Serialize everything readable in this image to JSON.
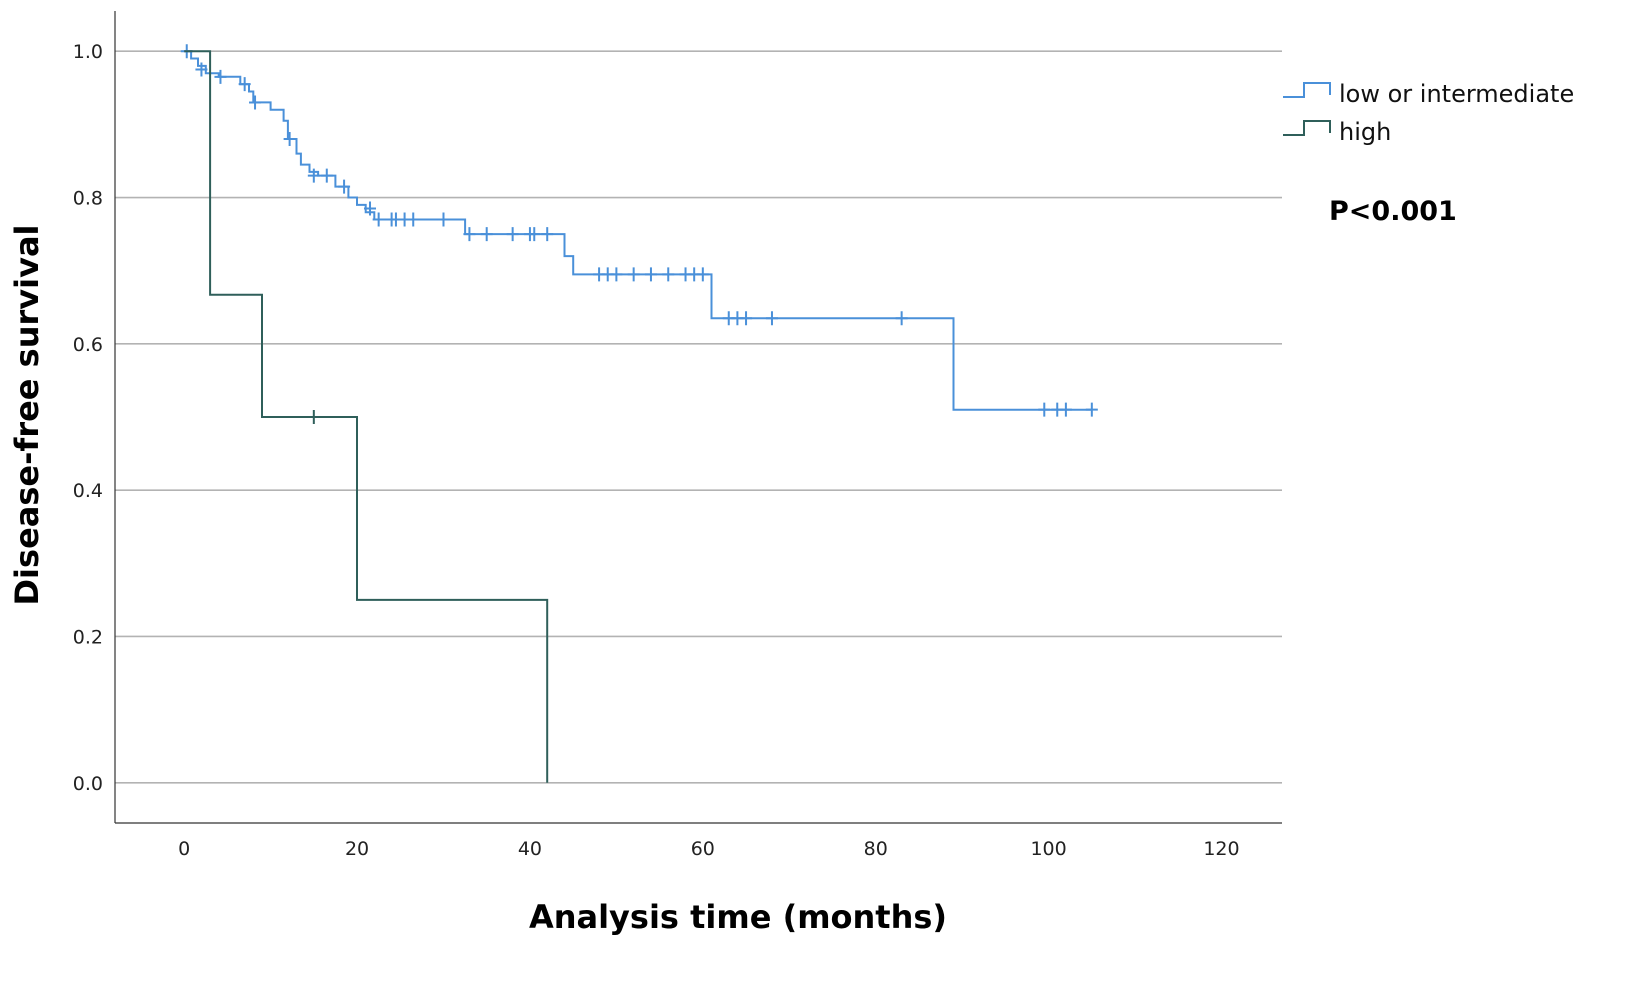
{
  "chart_data": {
    "type": "line",
    "subtype": "kaplan-meier",
    "title": "",
    "xlabel": "Analysis time (months)",
    "ylabel": "Disease-free survival",
    "xlim": [
      -8,
      127
    ],
    "ylim": [
      -0.055,
      1.055
    ],
    "x_ticks": [
      0,
      20,
      40,
      60,
      80,
      100,
      120
    ],
    "x_tick_labels": [
      "0",
      "20",
      "40",
      "60",
      "80",
      "100",
      "120"
    ],
    "y_ticks": [
      0.0,
      0.2,
      0.4,
      0.6,
      0.8,
      1.0
    ],
    "y_tick_labels": [
      "0.0",
      "0.2",
      "0.4",
      "0.6",
      "0.8",
      "1.0"
    ],
    "grid": "horizontal",
    "legend_position": "right",
    "annotation": "P<0.001",
    "series": [
      {
        "name": "low or intermediate",
        "color": "#4a90d9",
        "steps": [
          [
            0,
            1.0
          ],
          [
            0.8,
            0.99
          ],
          [
            1.6,
            0.98
          ],
          [
            2.5,
            0.97
          ],
          [
            4.0,
            0.965
          ],
          [
            6.5,
            0.955
          ],
          [
            7.5,
            0.945
          ],
          [
            8.0,
            0.93
          ],
          [
            10.0,
            0.92
          ],
          [
            11.5,
            0.905
          ],
          [
            12.0,
            0.88
          ],
          [
            13.0,
            0.86
          ],
          [
            13.5,
            0.845
          ],
          [
            14.5,
            0.835
          ],
          [
            15.5,
            0.83
          ],
          [
            17.5,
            0.815
          ],
          [
            19.0,
            0.8
          ],
          [
            20.0,
            0.79
          ],
          [
            21.0,
            0.78
          ],
          [
            22.0,
            0.77
          ],
          [
            32.5,
            0.75
          ],
          [
            44.0,
            0.72
          ],
          [
            45.0,
            0.695
          ],
          [
            61.0,
            0.635
          ],
          [
            89.0,
            0.51
          ],
          [
            105.0,
            0.51
          ]
        ],
        "censored": [
          [
            0.3,
            1.0
          ],
          [
            2.0,
            0.975
          ],
          [
            4.2,
            0.965
          ],
          [
            7.0,
            0.955
          ],
          [
            8.2,
            0.93
          ],
          [
            12.2,
            0.88
          ],
          [
            15.0,
            0.83
          ],
          [
            16.5,
            0.83
          ],
          [
            18.5,
            0.815
          ],
          [
            21.5,
            0.785
          ],
          [
            22.5,
            0.77
          ],
          [
            24.0,
            0.77
          ],
          [
            24.5,
            0.77
          ],
          [
            25.5,
            0.77
          ],
          [
            26.5,
            0.77
          ],
          [
            30.0,
            0.77
          ],
          [
            33.0,
            0.75
          ],
          [
            35.0,
            0.75
          ],
          [
            38.0,
            0.75
          ],
          [
            40.0,
            0.75
          ],
          [
            40.5,
            0.75
          ],
          [
            42.0,
            0.75
          ],
          [
            48.0,
            0.695
          ],
          [
            49.0,
            0.695
          ],
          [
            50.0,
            0.695
          ],
          [
            52.0,
            0.695
          ],
          [
            54.0,
            0.695
          ],
          [
            56.0,
            0.695
          ],
          [
            58.0,
            0.695
          ],
          [
            59.0,
            0.695
          ],
          [
            60.0,
            0.695
          ],
          [
            63.0,
            0.635
          ],
          [
            64.0,
            0.635
          ],
          [
            65.0,
            0.635
          ],
          [
            68.0,
            0.635
          ],
          [
            83.0,
            0.635
          ],
          [
            99.5,
            0.51
          ],
          [
            101.0,
            0.51
          ],
          [
            102.0,
            0.51
          ],
          [
            105.0,
            0.51
          ]
        ]
      },
      {
        "name": "high",
        "color": "#2f5f5a",
        "steps": [
          [
            0,
            1.0
          ],
          [
            3.0,
            0.667
          ],
          [
            9.0,
            0.5
          ],
          [
            20.0,
            0.25
          ],
          [
            42.0,
            0.0
          ]
        ],
        "censored": [
          [
            15.0,
            0.5
          ]
        ]
      }
    ]
  }
}
